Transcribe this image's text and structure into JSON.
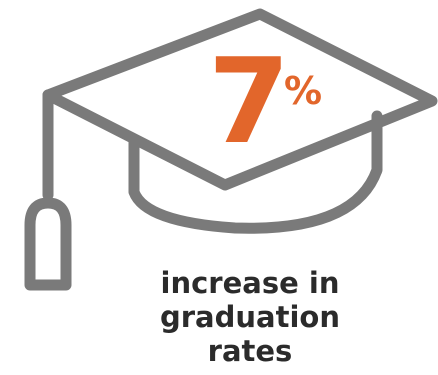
{
  "stat": {
    "value": "7",
    "unit": "%"
  },
  "caption": {
    "line1": "increase in",
    "line2": "graduation",
    "line3": "rates"
  },
  "icon": "graduation-cap-icon",
  "colors": {
    "accent": "#e2662b",
    "icon": "#7a7a7a",
    "text": "#2b2b2b",
    "background": "#ffffff"
  }
}
